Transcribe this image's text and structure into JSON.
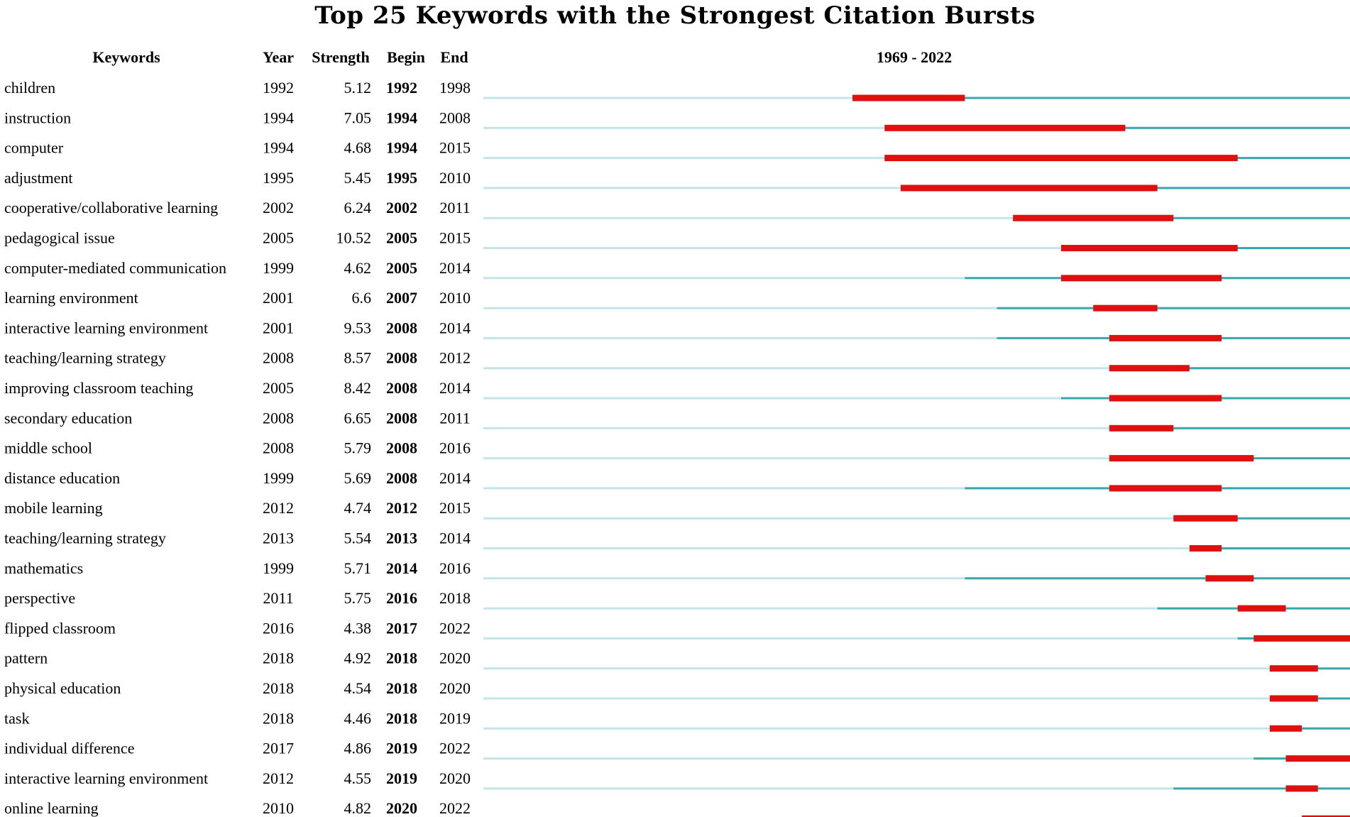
{
  "title": "Top 25 Keywords with the Strongest Citation Bursts",
  "headers": {
    "keywords": "Keywords",
    "year": "Year",
    "strength": "Strength",
    "begin": "Begin",
    "end": "End",
    "range": "1969 - 2022"
  },
  "colors": {
    "baseline_light": "#c4e4ea",
    "baseline_teal": "#3aa7ad",
    "burst_red": "#e01010"
  },
  "chart_data": {
    "type": "table",
    "timeline_range": [
      1969,
      2022
    ],
    "columns": [
      "Keywords",
      "Year",
      "Strength",
      "Begin",
      "End"
    ],
    "rows": [
      {
        "keyword": "children",
        "year": 1992,
        "strength": "5.12",
        "begin": 1992,
        "end": 1998
      },
      {
        "keyword": "instruction",
        "year": 1994,
        "strength": "7.05",
        "begin": 1994,
        "end": 2008
      },
      {
        "keyword": "computer",
        "year": 1994,
        "strength": "4.68",
        "begin": 1994,
        "end": 2015
      },
      {
        "keyword": "adjustment",
        "year": 1995,
        "strength": "5.45",
        "begin": 1995,
        "end": 2010
      },
      {
        "keyword": "cooperative/collaborative learning",
        "year": 2002,
        "strength": "6.24",
        "begin": 2002,
        "end": 2011
      },
      {
        "keyword": "pedagogical issue",
        "year": 2005,
        "strength": "10.52",
        "begin": 2005,
        "end": 2015
      },
      {
        "keyword": "computer-mediated communication",
        "year": 1999,
        "strength": "4.62",
        "begin": 2005,
        "end": 2014
      },
      {
        "keyword": "learning environment",
        "year": 2001,
        "strength": "6.6",
        "begin": 2007,
        "end": 2010
      },
      {
        "keyword": "interactive learning environment",
        "year": 2001,
        "strength": "9.53",
        "begin": 2008,
        "end": 2014
      },
      {
        "keyword": "teaching/learning strategy",
        "year": 2008,
        "strength": "8.57",
        "begin": 2008,
        "end": 2012
      },
      {
        "keyword": "improving classroom teaching",
        "year": 2005,
        "strength": "8.42",
        "begin": 2008,
        "end": 2014
      },
      {
        "keyword": "secondary education",
        "year": 2008,
        "strength": "6.65",
        "begin": 2008,
        "end": 2011
      },
      {
        "keyword": "middle school",
        "year": 2008,
        "strength": "5.79",
        "begin": 2008,
        "end": 2016
      },
      {
        "keyword": "distance education",
        "year": 1999,
        "strength": "5.69",
        "begin": 2008,
        "end": 2014
      },
      {
        "keyword": "mobile learning",
        "year": 2012,
        "strength": "4.74",
        "begin": 2012,
        "end": 2015
      },
      {
        "keyword": "teaching/learning strategy",
        "year": 2013,
        "strength": "5.54",
        "begin": 2013,
        "end": 2014
      },
      {
        "keyword": "mathematics",
        "year": 1999,
        "strength": "5.71",
        "begin": 2014,
        "end": 2016
      },
      {
        "keyword": "perspective",
        "year": 2011,
        "strength": "5.75",
        "begin": 2016,
        "end": 2018
      },
      {
        "keyword": "flipped classroom",
        "year": 2016,
        "strength": "4.38",
        "begin": 2017,
        "end": 2022
      },
      {
        "keyword": "pattern",
        "year": 2018,
        "strength": "4.92",
        "begin": 2018,
        "end": 2020
      },
      {
        "keyword": "physical education",
        "year": 2018,
        "strength": "4.54",
        "begin": 2018,
        "end": 2020
      },
      {
        "keyword": "task",
        "year": 2018,
        "strength": "4.46",
        "begin": 2018,
        "end": 2019
      },
      {
        "keyword": "individual difference",
        "year": 2017,
        "strength": "4.86",
        "begin": 2019,
        "end": 2022
      },
      {
        "keyword": "interactive learning environment",
        "year": 2012,
        "strength": "4.55",
        "begin": 2019,
        "end": 2020
      },
      {
        "keyword": "online learning",
        "year": 2010,
        "strength": "4.82",
        "begin": 2020,
        "end": 2022
      }
    ]
  }
}
